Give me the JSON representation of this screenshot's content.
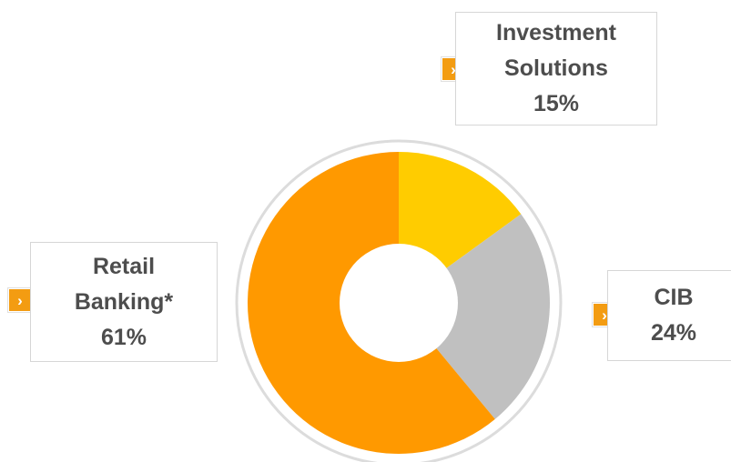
{
  "chart_data": {
    "type": "pie",
    "variant": "donut",
    "colors": {
      "accent": "#f39c12",
      "bullet": "#f39c12",
      "ring": "#dcdcdc"
    },
    "slices": [
      {
        "id": "is",
        "lines": [
          "Investment",
          "Solutions",
          "15%"
        ],
        "value": 15,
        "color": "#ffcc00"
      },
      {
        "id": "cib",
        "lines": [
          "CIB",
          "24%"
        ],
        "value": 24,
        "color": "#c0c0c0"
      },
      {
        "id": "rb",
        "lines": [
          "Retail",
          "Banking*",
          "61%"
        ],
        "value": 61,
        "color": "#ff9900"
      }
    ],
    "bullet_icon": "chevron-right-icon"
  }
}
